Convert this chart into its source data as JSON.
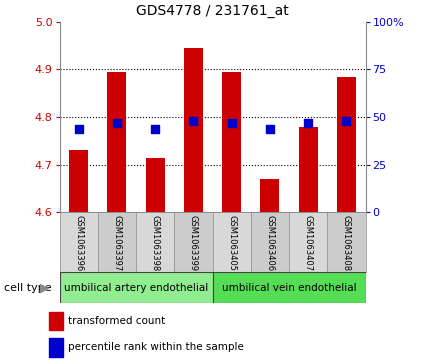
{
  "title": "GDS4778 / 231761_at",
  "samples": [
    "GSM1063396",
    "GSM1063397",
    "GSM1063398",
    "GSM1063399",
    "GSM1063405",
    "GSM1063406",
    "GSM1063407",
    "GSM1063408"
  ],
  "transformed_count": [
    4.73,
    4.895,
    4.715,
    4.945,
    4.895,
    4.67,
    4.78,
    4.885
  ],
  "percentile_rank": [
    44,
    47,
    44,
    48,
    47,
    44,
    47,
    48
  ],
  "ylim": [
    4.6,
    5.0
  ],
  "yticks": [
    4.6,
    4.7,
    4.8,
    4.9,
    5.0
  ],
  "y2lim": [
    0,
    100
  ],
  "y2ticks": [
    0,
    25,
    50,
    75,
    100
  ],
  "y2ticklabels": [
    "0",
    "25",
    "50",
    "75",
    "100%"
  ],
  "bar_color": "#cc0000",
  "dot_color": "#0000cc",
  "bg_color": "#ffffff",
  "cell_type_groups": [
    {
      "label": "umbilical artery endothelial",
      "color": "#90ee90"
    },
    {
      "label": "umbilical vein endothelial",
      "color": "#55dd55"
    }
  ],
  "cell_type_label": "cell type",
  "legend_items": [
    {
      "color": "#cc0000",
      "label": "transformed count"
    },
    {
      "color": "#0000cc",
      "label": "percentile rank within the sample"
    }
  ],
  "ylabel_color": "#cc0000",
  "y2label_color": "#0000cc",
  "bar_width": 0.5,
  "dot_size": 30,
  "base_value": 4.6
}
